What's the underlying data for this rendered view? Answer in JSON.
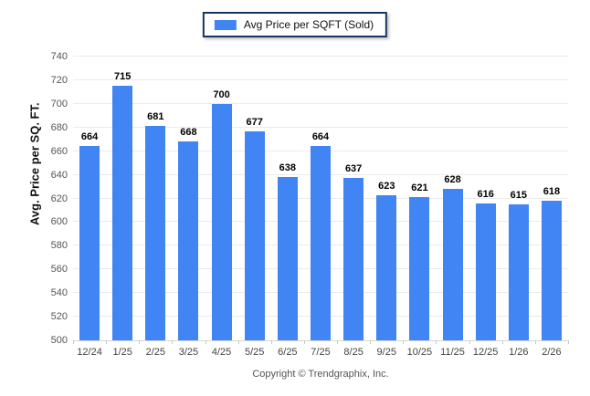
{
  "page": {
    "footer": "Copyright © Trendgraphix, Inc."
  },
  "legend": {
    "label": "Avg Price per SQFT (Sold)",
    "swatch_color": "#4184F3",
    "border_color": "#17365D"
  },
  "chart_data": {
    "type": "bar",
    "title": "",
    "xlabel": "",
    "ylabel": "Avg. Price per SQ. FT.",
    "categories": [
      "12/24",
      "1/25",
      "2/25",
      "3/25",
      "4/25",
      "5/25",
      "6/25",
      "7/25",
      "8/25",
      "9/25",
      "10/25",
      "11/25",
      "12/25",
      "1/26",
      "2/26"
    ],
    "series": [
      {
        "name": "Avg Price per SQFT (Sold)",
        "color": "#4184F3",
        "values": [
          664,
          715,
          681,
          668,
          700,
          677,
          638,
          664,
          637,
          623,
          621,
          628,
          616,
          615,
          618
        ]
      }
    ],
    "value_labels_shown": true,
    "ylim": [
      500,
      740
    ],
    "ytick_step": 20,
    "yticks": [
      500,
      520,
      540,
      560,
      580,
      600,
      620,
      640,
      660,
      680,
      700,
      720,
      740
    ],
    "grid": "horizontal",
    "legend_position": "top-center"
  }
}
